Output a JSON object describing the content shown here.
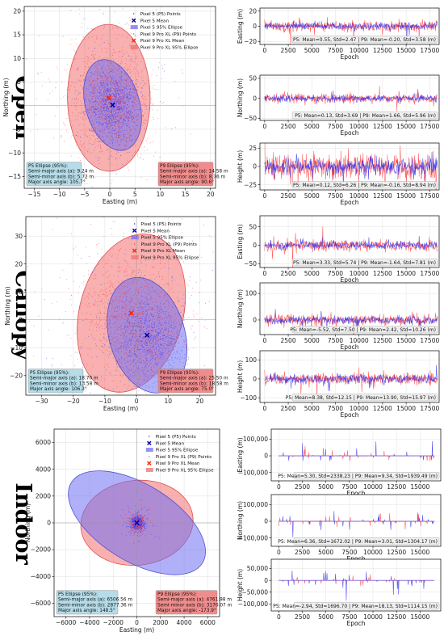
{
  "colors": {
    "p5": "#3333ff",
    "p9": "#ff3333",
    "p5_ellipse": "#6f6ff2",
    "p9_ellipse": "#f26f6f",
    "p5_box": "#add8e6",
    "p9_box": "#f08080",
    "stat_box": "#eeeeee"
  },
  "legend": {
    "p5_points": "Pixel 5 (P5) Points",
    "p5_mean": "Pixel 5 Mean",
    "p5_ellipse": "Pixel 5 95% Ellipse",
    "p9_points": "Pixel 9 Pro XL (P9) Points",
    "p9_mean": "Pixel 9 Pro XL Mean",
    "p9_ellipse": "Pixel 9 Pro XL 95% Ellipse"
  },
  "chart_data": [
    {
      "type": "scatter",
      "row_label": "Open",
      "xlabel": "Easting (m)",
      "ylabel": "Northing (m)",
      "xlim": [
        -17,
        21
      ],
      "ylim": [
        -17.5,
        21
      ],
      "xticks": [
        -15,
        -10,
        -5,
        0,
        5,
        10,
        15,
        20
      ],
      "yticks": [
        -15,
        -10,
        -5,
        0,
        5,
        10,
        15,
        20
      ],
      "p5_mean": [
        0.55,
        0.13
      ],
      "p9_mean": [
        -0.2,
        1.66
      ],
      "p5_ellipse": {
        "a": 9.24,
        "b": 5.72,
        "angle": 105.7
      },
      "p9_ellipse": {
        "a": 14.58,
        "b": 8.76,
        "angle": 90.6
      },
      "p5_spread": [
        2.5,
        3.7
      ],
      "p9_spread": [
        3.6,
        6.0
      ],
      "p5_box": [
        "P5 Ellipse (95%):",
        "Semi-major axis (a): 9.24 m",
        "Semi-minor axis (b): 5.72 m",
        "Major axis angle: 105.7°"
      ],
      "p9_box": [
        "P9 Ellipse (95%):",
        "Semi-major axis (a): 14.58 m",
        "Semi-minor axis (b): 8.76 m",
        "Major axis angle: 90.6°"
      ],
      "series_panels": [
        {
          "ylabel": "Easting (m)",
          "ylim": [
            -24,
            24
          ],
          "yticks": [
            -20,
            0,
            20
          ],
          "p5_std": 2.47,
          "p9_std": 3.58,
          "stats": "P5: Mean=0.55, Std=2.47 | P9: Mean=-0.20, Std=3.58 (m)"
        },
        {
          "ylabel": "Northing (m)",
          "ylim": [
            -55,
            58
          ],
          "yticks": [
            -50,
            0,
            50
          ],
          "p5_std": 3.69,
          "p9_std": 5.96,
          "stats": "P5: Mean=0.13, Std=3.69 | P9: Mean=1.66, Std=5.96 (m)"
        },
        {
          "ylabel": "Height (m)",
          "ylim": [
            -32,
            32
          ],
          "yticks": [
            -25,
            0,
            25
          ],
          "p5_std": 6.26,
          "p9_std": 8.94,
          "stats": "P5: Mean=0.12, Std=6.26 | P9: Mean=-0.16, Std=8.94 (m)"
        }
      ],
      "series_xlabel": "Epoch",
      "series_xlim": [
        -500,
        18500
      ],
      "series_xticks": [
        0,
        2500,
        5000,
        7500,
        10000,
        12500,
        15000,
        17500
      ]
    },
    {
      "type": "scatter",
      "row_label": "Canopy",
      "xlabel": "Easting (m)",
      "ylabel": "Northing (m)",
      "xlim": [
        -35,
        25
      ],
      "ylim": [
        -27,
        37
      ],
      "xticks": [
        -30,
        -20,
        -10,
        0,
        10,
        20
      ],
      "yticks": [
        -20,
        -10,
        0,
        10,
        20,
        30
      ],
      "p5_mean": [
        3.33,
        -5.52
      ],
      "p9_mean": [
        -1.64,
        2.42
      ],
      "p5_ellipse": {
        "a": 18.7,
        "b": 13.58,
        "angle": 106.3
      },
      "p9_ellipse": {
        "a": 25.5,
        "b": 18.58,
        "angle": 75.0
      },
      "p5_spread": [
        5.7,
        7.5
      ],
      "p9_spread": [
        7.8,
        10.3
      ],
      "p5_box": [
        "P5 Ellipse (95%):",
        "Semi-major axis (a): 18.70 m",
        "Semi-minor axis (b): 13.58 m",
        "Major axis angle: 106.3°"
      ],
      "p9_box": [
        "P9 Ellipse (95%):",
        "Semi-major axis (a): 25.50 m",
        "Semi-minor axis (b): 18.58 m",
        "Major axis angle: 75.0°"
      ],
      "series_panels": [
        {
          "ylabel": "Easting (m)",
          "ylim": [
            -60,
            80
          ],
          "yticks": [
            -50,
            0,
            50
          ],
          "p5_std": 5.74,
          "p9_std": 7.81,
          "stats": "P5: Mean=3.33, Std=5.74 | P9: Mean=-1.64, Std=7.81 (m)"
        },
        {
          "ylabel": "Northing (m)",
          "ylim": [
            -55,
            140
          ],
          "yticks": [
            0,
            100
          ],
          "p5_std": 7.5,
          "p9_std": 10.26,
          "stats": "P5: Mean=-5.52, Std=7.50 | P9: Mean=2.42, Std=10.26 (m)"
        },
        {
          "ylabel": "Height (m)",
          "ylim": [
            -125,
            150
          ],
          "yticks": [
            -100,
            0,
            100
          ],
          "p5_std": 12.15,
          "p9_std": 15.97,
          "stats": "P5: Mean=8.38, Std=12.15 | P9: Mean=13.90, Std=15.97 (m)"
        }
      ],
      "series_xlabel": "Epoch",
      "series_xlim": [
        -500,
        18500
      ],
      "series_xticks": [
        0,
        2500,
        5000,
        7500,
        10000,
        12500,
        15000,
        17500
      ]
    },
    {
      "type": "scatter",
      "row_label": "Indoor",
      "xlabel": "Easting (m)",
      "ylabel": "Northing (m)",
      "xlim": [
        -7000,
        7000
      ],
      "ylim": [
        -7000,
        7000
      ],
      "xticks": [
        -6000,
        -4000,
        -2000,
        0,
        2000,
        4000,
        6000
      ],
      "yticks": [
        -6000,
        -4000,
        -2000,
        0,
        2000,
        4000,
        6000
      ],
      "p5_mean": [
        5.3,
        6.36
      ],
      "p9_mean": [
        9.34,
        3.01
      ],
      "p5_ellipse": {
        "a": 6506.56,
        "b": 2877.36,
        "angle": 148.5
      },
      "p9_ellipse": {
        "a": 4761.98,
        "b": 3170.07,
        "angle": -173.9
      },
      "p5_spread": [
        300,
        300
      ],
      "p9_spread": [
        300,
        300
      ],
      "p5_box": [
        "P5 Ellipse (95%):",
        "Semi-major axis (a): 6506.56 m",
        "Semi-minor axis (b): 2877.36 m",
        "Major axis angle: 148.5°"
      ],
      "p9_box": [
        "P9 Ellipse (95%):",
        "Semi-major axis (a): 4761.98 m",
        "Semi-minor axis (b): 3170.07 m",
        "Major axis angle: -173.9°"
      ],
      "series_panels": [
        {
          "ylabel": "Easting (m)",
          "ylim": [
            -150000,
            160000
          ],
          "yticks": [
            -100000,
            0,
            100000
          ],
          "ytick_labels": [
            "−100,000",
            "0",
            "100,000"
          ],
          "p5_std": 2338.23,
          "p9_std": 1939.49,
          "stats": "P5: Mean=5.30, Std=2338.23 | P9: Mean=9.34, Std=1939.49 (m)"
        },
        {
          "ylabel": "Northing (m)",
          "ylim": [
            -150000,
            160000
          ],
          "yticks": [
            -100000,
            0,
            100000
          ],
          "ytick_labels": [
            "−100,000",
            "0",
            "100,000"
          ],
          "p5_std": 1672.02,
          "p9_std": 1304.17,
          "stats": "P5: Mean=6.36, Std=1672.02 | P9: Mean=3.01, Std=1304.17 (m)"
        },
        {
          "ylabel": "Height (m)",
          "ylim": [
            -130000,
            90000
          ],
          "yticks": [
            -100000,
            -50000,
            0,
            50000
          ],
          "ytick_labels": [
            "−100,000",
            "−50,000",
            "0",
            "50,000"
          ],
          "p5_std": 1696.7,
          "p9_std": 1114.15,
          "stats": "P5: Mean=-2.94, Std=1696.70 | P9: Mean=18.13, Std=1114.15 (m)"
        }
      ],
      "series_xlabel": "Epoch",
      "series_xlim": [
        -800,
        17200
      ],
      "series_xticks": [
        0,
        2500,
        5000,
        7500,
        10000,
        12500,
        15000
      ],
      "spiky": true
    }
  ]
}
